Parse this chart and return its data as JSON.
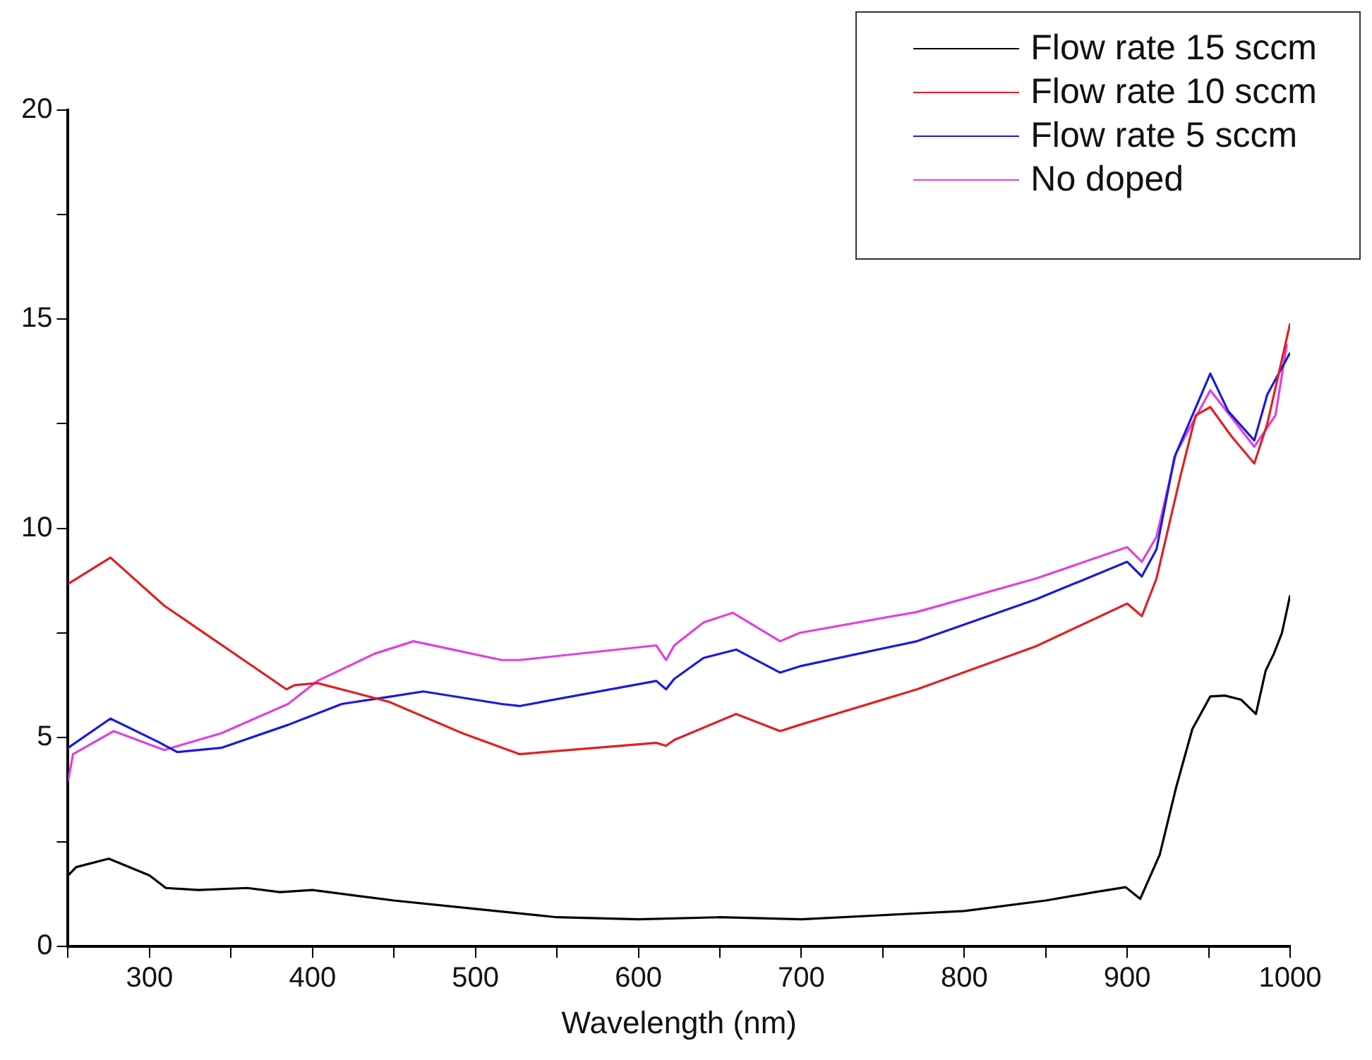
{
  "chart_data": {
    "type": "line",
    "xlabel": "Wavelength (nm)",
    "xlim": [
      250,
      1000
    ],
    "ylim": [
      0,
      20
    ],
    "xticks": [
      {
        "value": 250,
        "label": null
      },
      300,
      {
        "value": 350,
        "label": null
      },
      400,
      {
        "value": 450,
        "label": null
      },
      500,
      {
        "value": 550,
        "label": null
      },
      600,
      {
        "value": 650,
        "label": null
      },
      700,
      {
        "value": 750,
        "label": null
      },
      800,
      {
        "value": 850,
        "label": null
      },
      900,
      {
        "value": 950,
        "label": null
      },
      1000
    ],
    "yticks": [
      0,
      {
        "value": 2.5,
        "label": null
      },
      5,
      {
        "value": 7.5,
        "label": null
      },
      10,
      {
        "value": 12.5,
        "label": null
      },
      15,
      {
        "value": 17.5,
        "label": null
      },
      20
    ],
    "grid": false,
    "legend": "top right",
    "marker": "none",
    "line_style": "solid",
    "series": [
      {
        "name": "Flow rate 15 sccm",
        "color": "#000000",
        "x": [
          250,
          255,
          275,
          300,
          310,
          330,
          360,
          380,
          400,
          450,
          500,
          550,
          600,
          650,
          700,
          750,
          800,
          850,
          880,
          899,
          908,
          920,
          930,
          940,
          951,
          960,
          970,
          979,
          985,
          990,
          995,
          1000
        ],
        "values": [
          1.7,
          1.9,
          2.1,
          1.7,
          1.4,
          1.35,
          1.4,
          1.3,
          1.35,
          1.1,
          0.9,
          0.7,
          0.65,
          0.7,
          0.65,
          0.75,
          0.85,
          1.1,
          1.3,
          1.42,
          1.14,
          2.2,
          3.8,
          5.2,
          5.98,
          6.0,
          5.9,
          5.56,
          6.6,
          7.0,
          7.5,
          8.4
        ]
      },
      {
        "name": "Flow rate 10 sccm",
        "color": "#e02020",
        "x": [
          250,
          276,
          309,
          384,
          389,
          403,
          447,
          492,
          527,
          611,
          617,
          622,
          660,
          687,
          699,
          771,
          844,
          900,
          909,
          918,
          933,
          942,
          951,
          964,
          978,
          986,
          1000
        ],
        "values": [
          8.67,
          9.3,
          8.15,
          6.15,
          6.25,
          6.3,
          5.85,
          5.1,
          4.6,
          4.87,
          4.8,
          4.94,
          5.56,
          5.15,
          5.3,
          6.15,
          7.18,
          8.2,
          7.9,
          8.8,
          11.3,
          12.7,
          12.9,
          12.2,
          11.55,
          12.5,
          14.9
        ]
      },
      {
        "name": "Flow rate 5 sccm",
        "color": "#1a1adc",
        "x": [
          250,
          276,
          305,
          317,
          344,
          385,
          418,
          447,
          468,
          516,
          527,
          611,
          617,
          622,
          640,
          660,
          687,
          699,
          771,
          844,
          900,
          909,
          918,
          929,
          951,
          962,
          978,
          986,
          1000
        ],
        "values": [
          4.75,
          5.45,
          4.9,
          4.65,
          4.75,
          5.3,
          5.8,
          5.97,
          6.1,
          5.8,
          5.75,
          6.35,
          6.15,
          6.4,
          6.9,
          7.1,
          6.55,
          6.7,
          7.3,
          8.3,
          9.2,
          8.85,
          9.5,
          11.7,
          13.7,
          12.8,
          12.1,
          13.2,
          14.2
        ]
      },
      {
        "name": "No doped",
        "color": "#e040e0",
        "x": [
          250,
          253,
          278,
          309,
          344,
          385,
          403,
          438,
          462,
          492,
          516,
          527,
          611,
          617,
          622,
          640,
          658,
          687,
          699,
          771,
          844,
          900,
          909,
          918,
          930,
          951,
          978,
          991,
          998
        ],
        "values": [
          3.95,
          4.6,
          5.15,
          4.7,
          5.1,
          5.8,
          6.35,
          7.0,
          7.3,
          7.05,
          6.85,
          6.85,
          7.2,
          6.85,
          7.2,
          7.75,
          7.98,
          7.3,
          7.5,
          8.0,
          8.8,
          9.55,
          9.2,
          9.8,
          11.8,
          13.3,
          11.95,
          12.7,
          14.4
        ]
      }
    ]
  }
}
